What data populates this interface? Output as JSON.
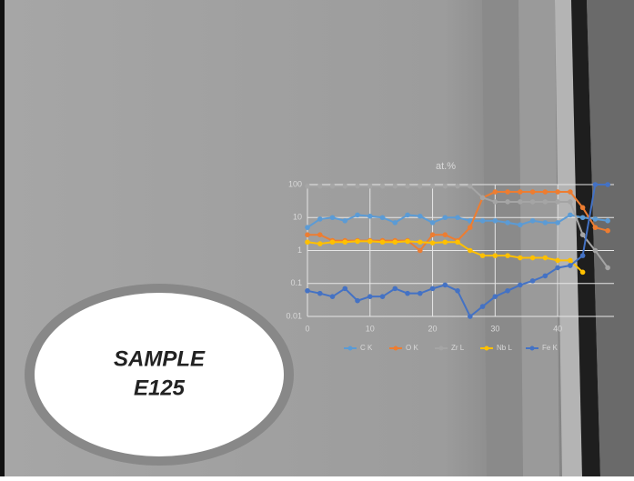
{
  "sample_label": {
    "line1": "SAMPLE",
    "line2": "E125"
  },
  "chart_data": {
    "type": "line",
    "title": "at.%",
    "x": [
      0,
      2,
      4,
      6,
      8,
      10,
      12,
      14,
      16,
      18,
      20,
      22,
      24,
      26,
      28,
      30,
      32,
      34,
      36,
      38,
      40,
      42,
      44,
      46,
      48
    ],
    "xlim": [
      0,
      49
    ],
    "xticks": [
      0,
      10,
      20,
      30,
      40
    ],
    "ylim": [
      0.01,
      100
    ],
    "yticks": [
      0.01,
      0.1,
      1,
      10,
      100
    ],
    "log_scale": true,
    "grid": true,
    "legend": "bottom",
    "series": [
      {
        "name": "C K",
        "color": "#5b9bd5",
        "values": [
          5,
          9,
          10,
          8,
          12,
          11,
          10,
          7,
          12,
          11,
          7,
          10,
          10,
          8,
          8,
          8,
          7,
          6,
          8,
          7,
          7,
          12,
          10,
          9,
          8
        ]
      },
      {
        "name": "O K",
        "color": "#ed7d31",
        "values": [
          3,
          3,
          2,
          2,
          2,
          2,
          2,
          2,
          2,
          1,
          3,
          3,
          2,
          5,
          40,
          60,
          60,
          60,
          60,
          60,
          60,
          60,
          20,
          5,
          4
        ]
      },
      {
        "name": "Zr L",
        "color": "#a5a5a5",
        "values": [
          90,
          90,
          90,
          90,
          90,
          90,
          90,
          90,
          90,
          90,
          90,
          90,
          90,
          90,
          40,
          30,
          30,
          30,
          30,
          30,
          30,
          30,
          3,
          1,
          0.3
        ]
      },
      {
        "name": "Nb L",
        "color": "#ffc000",
        "values": [
          1.8,
          1.6,
          1.8,
          1.8,
          1.9,
          1.9,
          1.8,
          1.8,
          1.9,
          1.8,
          1.7,
          1.8,
          1.8,
          1.0,
          0.7,
          0.7,
          0.7,
          0.6,
          0.6,
          0.6,
          0.5,
          0.5,
          0.22,
          null,
          null
        ]
      },
      {
        "name": "Fe K",
        "color": "#4472c4",
        "values": [
          0.06,
          0.05,
          0.04,
          0.07,
          0.03,
          0.04,
          0.04,
          0.07,
          0.05,
          0.05,
          0.07,
          0.09,
          0.06,
          0.01,
          0.02,
          0.04,
          0.06,
          0.09,
          0.12,
          0.17,
          0.3,
          0.35,
          0.7,
          100,
          100
        ]
      }
    ]
  }
}
